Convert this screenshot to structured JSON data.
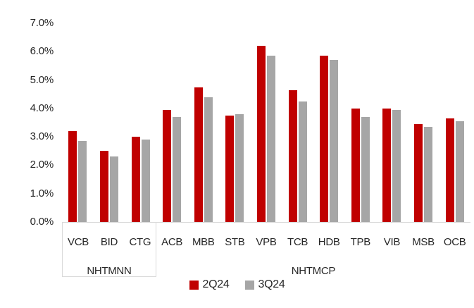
{
  "chart_data": {
    "type": "bar",
    "title": "",
    "categories": [
      "VCB",
      "BID",
      "CTG",
      "ACB",
      "MBB",
      "STB",
      "VPB",
      "TCB",
      "HDB",
      "TPB",
      "VIB",
      "MSB",
      "OCB"
    ],
    "groups": [
      {
        "label": "NHTMNN",
        "span": 3
      },
      {
        "label": "NHTMCP",
        "span": 10
      }
    ],
    "series": [
      {
        "name": "2Q24",
        "color": "#C00000",
        "values": [
          3.2,
          2.5,
          3.0,
          3.95,
          4.75,
          3.75,
          6.2,
          4.65,
          5.85,
          4.0,
          4.0,
          3.45,
          3.65
        ]
      },
      {
        "name": "3Q24",
        "color": "#A6A6A6",
        "values": [
          2.85,
          2.3,
          2.9,
          3.7,
          4.4,
          3.8,
          5.85,
          4.25,
          5.7,
          3.7,
          3.95,
          3.35,
          3.55
        ]
      }
    ],
    "unit": "%",
    "ylim": [
      0,
      7
    ],
    "y_tick_step": 1.0,
    "y_tick_labels": [
      "0.0%",
      "1.0%",
      "2.0%",
      "3.0%",
      "4.0%",
      "5.0%",
      "6.0%",
      "7.0%"
    ],
    "grid": false,
    "legend_position": "bottom",
    "colors": {
      "axis_line": "#D9D9D9",
      "text": "#262626"
    }
  }
}
